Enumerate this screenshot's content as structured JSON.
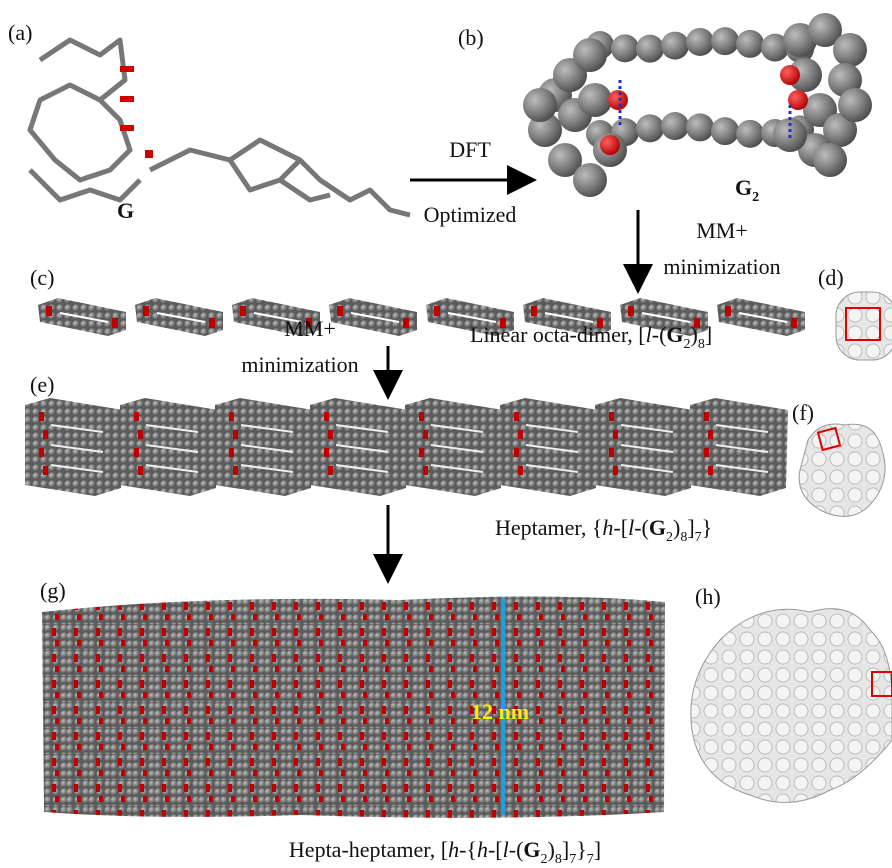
{
  "panels": {
    "a": {
      "label": "(a)",
      "name": "G"
    },
    "b": {
      "label": "(b)",
      "name": [
        "G",
        "2"
      ]
    },
    "c": {
      "label": "(c)"
    },
    "d": {
      "label": "(d)"
    },
    "e": {
      "label": "(e)"
    },
    "f": {
      "label": "(f)"
    },
    "g": {
      "label": "(g)",
      "scale": "12 nm"
    },
    "h": {
      "label": "(h)"
    }
  },
  "steps": {
    "dft": {
      "top": "DFT",
      "bottom": "Optimized"
    },
    "mm1": {
      "top": "MM+",
      "bottom": "minimization"
    },
    "mm2": {
      "top": "MM+",
      "bottom": "minimization"
    }
  },
  "captions": {
    "octamer": [
      "Linear octa-dimer, [",
      "l",
      "-(",
      "G",
      "2",
      ")",
      "8",
      "]"
    ],
    "heptamer": [
      "Heptamer, {",
      "h",
      "-[",
      "l",
      "-(",
      "G",
      "2",
      ")",
      "8",
      "]",
      "7",
      "}"
    ],
    "hepta_heptamer": [
      "Hepta-heptamer, [",
      "h",
      "-{",
      "h",
      "-[",
      "l",
      "-(",
      "G",
      "2",
      ")",
      "8",
      "]",
      "7",
      "}",
      "7",
      "]"
    ]
  }
}
